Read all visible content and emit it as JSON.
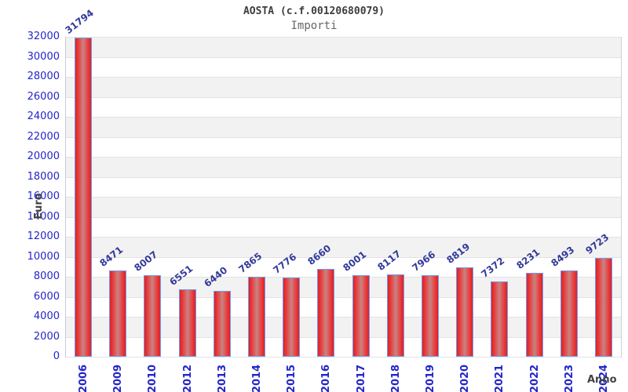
{
  "header": {
    "title": "AOSTA (c.f.00120680079)",
    "subtitle": "Importi"
  },
  "chart_data": {
    "type": "bar",
    "title": "AOSTA (c.f.00120680079)",
    "subtitle": "Importi",
    "xlabel": "Anno",
    "ylabel": "Euro",
    "categories": [
      "2006",
      "2009",
      "2010",
      "2012",
      "2013",
      "2014",
      "2015",
      "2016",
      "2017",
      "2018",
      "2019",
      "2020",
      "2021",
      "2022",
      "2023",
      "2024"
    ],
    "values": [
      31794,
      8471,
      8007,
      6551,
      6440,
      7865,
      7776,
      8660,
      8001,
      8117,
      7966,
      8819,
      7372,
      8231,
      8493,
      9723
    ],
    "ylim": [
      0,
      32000
    ],
    "ytick_step": 2000,
    "grid": "horizontal-bands-alternating",
    "legend": "none",
    "colors": {
      "bar_edge": "#de2126",
      "bar_center": "#c98383",
      "bar_border": "#6f9bee",
      "axis_tick_text": "#2424cc",
      "value_label_text": "#333a99",
      "band_gray": "#f2f2f2",
      "band_white": "#ffffff",
      "gridline": "#e2e2e2",
      "axis_title_text": "#424242",
      "title_text": "#3d3d3d",
      "subtitle_text": "#666666"
    }
  }
}
